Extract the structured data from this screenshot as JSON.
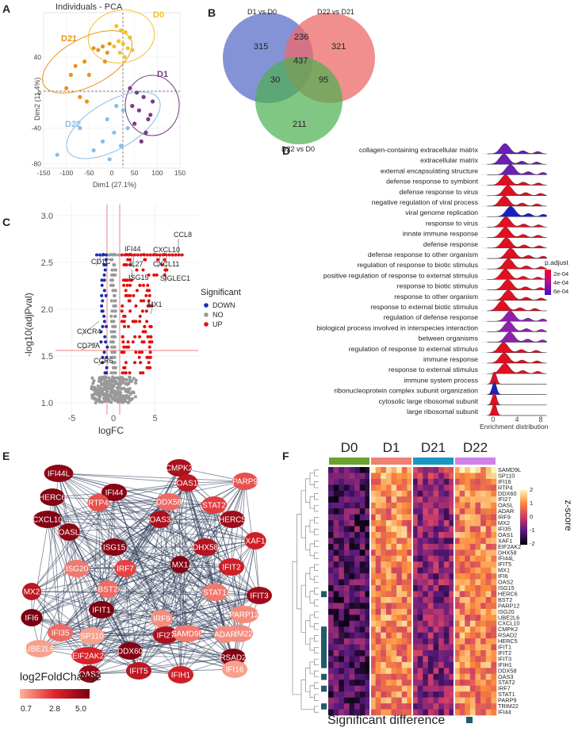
{
  "panels": {
    "A": "A",
    "B": "B",
    "C": "C",
    "D": "D",
    "E": "E",
    "F": "F"
  },
  "pca": {
    "title": "Individuals - PCA",
    "xlabel": "Dim1 (27.1%)",
    "ylabel": "Dim2 (11.4%)",
    "xticks": [
      "-150",
      "-100",
      "-50",
      "0",
      "50",
      "100",
      "150"
    ],
    "yticks": [
      "40",
      "0",
      "-40",
      "-80"
    ],
    "groups": [
      {
        "name": "D0",
        "color": "#f2c12e",
        "points": [
          [
            10,
            75
          ],
          [
            20,
            70
          ],
          [
            30,
            68
          ],
          [
            15,
            58
          ],
          [
            25,
            55
          ],
          [
            40,
            62
          ],
          [
            5,
            52
          ],
          [
            35,
            50
          ],
          [
            18,
            45
          ],
          [
            28,
            40
          ],
          [
            45,
            48
          ]
        ]
      },
      {
        "name": "D21",
        "color": "#e8941c",
        "points": [
          [
            -90,
            20
          ],
          [
            -80,
            30
          ],
          [
            -60,
            35
          ],
          [
            -40,
            50
          ],
          [
            -30,
            48
          ],
          [
            -20,
            52
          ],
          [
            -10,
            45
          ],
          [
            -5,
            55
          ],
          [
            -50,
            20
          ],
          [
            -70,
            -5
          ],
          [
            -100,
            5
          ],
          [
            -55,
            -10
          ],
          [
            -15,
            35
          ]
        ]
      },
      {
        "name": "D1",
        "color": "#7a3b86",
        "points": [
          [
            40,
            5
          ],
          [
            55,
            0
          ],
          [
            70,
            -5
          ],
          [
            60,
            -20
          ],
          [
            80,
            -30
          ],
          [
            50,
            -35
          ],
          [
            75,
            -45
          ],
          [
            90,
            -10
          ],
          [
            65,
            -55
          ],
          [
            45,
            -15
          ],
          [
            85,
            -25
          ]
        ]
      },
      {
        "name": "D22",
        "color": "#8bbde6",
        "points": [
          [
            -120,
            -70
          ],
          [
            -70,
            -40
          ],
          [
            -40,
            -65
          ],
          [
            -20,
            -55
          ],
          [
            -10,
            -30
          ],
          [
            5,
            -45
          ],
          [
            20,
            -60
          ],
          [
            35,
            -40
          ],
          [
            10,
            -15
          ],
          [
            -5,
            -75
          ],
          [
            25,
            -20
          ]
        ]
      }
    ],
    "xlim": [
      -150,
      150
    ],
    "ylim": [
      -85,
      90
    ]
  },
  "venn": {
    "labels": {
      "d1vsd0": "D1 vs D0",
      "d22vsd21": "D22 vs D21",
      "d22vsd0": "D22 vs D0"
    },
    "counts": {
      "only1": "315",
      "only2": "321",
      "only3": "211",
      "c12": "236",
      "c13": "30",
      "c23": "95",
      "c123": "437"
    }
  },
  "volcano": {
    "xlabel": "logFC",
    "ylabel": "-log10(adjPval)",
    "xticks": [
      "-5",
      "0",
      "5"
    ],
    "yticks": [
      "1.0",
      "1.5",
      "2.0",
      "2.5",
      "3.0"
    ],
    "legend_title": "Significant",
    "legend": [
      {
        "label": "DOWN",
        "color": "#1a2db0"
      },
      {
        "label": "NO",
        "color": "#999999"
      },
      {
        "label": "UP",
        "color": "#e01010"
      }
    ],
    "gene_labels": [
      "CCL8",
      "IFI44",
      "CXCL10",
      "CD1C",
      "IL27",
      "CXCL11",
      "ISG15",
      "SIGLEC1",
      "MX1",
      "CXCR4",
      "CD79A",
      "CCR6"
    ]
  },
  "ridge": {
    "terms": [
      "collagen-containing extracellular matrix",
      "extracellular matrix",
      "external encapsulating structure",
      "defense response to symbiont",
      "defense response to virus",
      "negative regulation of viral process",
      "viral genome replication",
      "response to virus",
      "innate immune response",
      "defense response",
      "defense response to other organism",
      "regulation of response to biotic stimulus",
      "positive regulation of response to external stimulus",
      "response to biotic stimulus",
      "response to other organism",
      "response to external biotic stimulus",
      "regulation of defense response",
      "biological process involved in interspecies interaction",
      "between organisms",
      "regulation of response to external stimulus",
      "immune response",
      "response to external stimulus",
      "immune system process",
      "ribonucleoprotein complex subunit organization",
      "cytosolic large ribosomal subunit",
      "large ribosomal subunit"
    ],
    "colors": [
      "#6a1fb8",
      "#6a1fb8",
      "#6a1fb8",
      "#e01020",
      "#e01020",
      "#e01020",
      "#1a20c0",
      "#e01020",
      "#e01020",
      "#e01020",
      "#e01020",
      "#e01020",
      "#e01020",
      "#e01020",
      "#e01020",
      "#e01020",
      "#9020b0",
      "#9020b0",
      "#9020b0",
      "#e01020",
      "#e01020",
      "#e01020",
      "#e01020",
      "#1a20c0",
      "#e01020",
      "#e01020"
    ],
    "xticks": [
      "0",
      "4",
      "8"
    ],
    "xlabel": "Enrichment distribution",
    "legend_title": "p.adjust",
    "legend_ticks": [
      "2e-04",
      "4e-04",
      "6e-04"
    ]
  },
  "network": {
    "nodes": [
      {
        "name": "IFI44L",
        "lfc": 4.6
      },
      {
        "name": "CMPK2",
        "lfc": 4.0
      },
      {
        "name": "HERC6",
        "lfc": 4.8
      },
      {
        "name": "IFI44",
        "lfc": 4.7
      },
      {
        "name": "OAS1",
        "lfc": 3.6
      },
      {
        "name": "PARP9",
        "lfc": 2.2
      },
      {
        "name": "CXCL10",
        "lfc": 4.8
      },
      {
        "name": "DDX58",
        "lfc": 1.8
      },
      {
        "name": "STAT2",
        "lfc": 2.5
      },
      {
        "name": "RTP4",
        "lfc": 2.2
      },
      {
        "name": "HERC5",
        "lfc": 4.2
      },
      {
        "name": "OASL",
        "lfc": 4.6
      },
      {
        "name": "OAS3",
        "lfc": 4.0
      },
      {
        "name": "XAF1",
        "lfc": 3.2
      },
      {
        "name": "ISG15",
        "lfc": 4.7
      },
      {
        "name": "DHX58",
        "lfc": 3.8
      },
      {
        "name": "IFIT2",
        "lfc": 3.2
      },
      {
        "name": "MX2",
        "lfc": 3.6
      },
      {
        "name": "ISG20",
        "lfc": 1.6
      },
      {
        "name": "IRF7",
        "lfc": 2.4
      },
      {
        "name": "MX1",
        "lfc": 4.8
      },
      {
        "name": "IFIT3",
        "lfc": 4.2
      },
      {
        "name": "IFI6",
        "lfc": 5.0
      },
      {
        "name": "BST2",
        "lfc": 1.8
      },
      {
        "name": "STAT1",
        "lfc": 1.6
      },
      {
        "name": "PARP12",
        "lfc": 1.3
      },
      {
        "name": "IFIT1",
        "lfc": 4.9
      },
      {
        "name": "TRIM22",
        "lfc": 1.3
      },
      {
        "name": "IRF9",
        "lfc": 1.3
      },
      {
        "name": "IFI35",
        "lfc": 1.8
      },
      {
        "name": "SP110",
        "lfc": 1.0
      },
      {
        "name": "IFI27",
        "lfc": 4.0
      },
      {
        "name": "RSAD2",
        "lfc": 4.8
      },
      {
        "name": "UBE2L6",
        "lfc": 1.0
      },
      {
        "name": "SAMD9L",
        "lfc": 1.6
      },
      {
        "name": "ADAR",
        "lfc": 1.3
      },
      {
        "name": "EIF2AK2",
        "lfc": 3.0
      },
      {
        "name": "DDX60",
        "lfc": 4.8
      },
      {
        "name": "OAS2",
        "lfc": 4.4
      },
      {
        "name": "IFI16",
        "lfc": 1.0
      },
      {
        "name": "IFIT5",
        "lfc": 3.6
      },
      {
        "name": "IFIH1",
        "lfc": 3.2
      }
    ],
    "legend_title": "log2FoldChange",
    "legend_ticks": [
      "0.7",
      "2.8",
      "5.0"
    ]
  },
  "heatmap": {
    "groups": [
      {
        "label": "D0",
        "color": "#6aa22a"
      },
      {
        "label": "D1",
        "color": "#f08070"
      },
      {
        "label": "D21",
        "color": "#1a97c0"
      },
      {
        "label": "D22",
        "color": "#d080e8"
      }
    ],
    "genes": [
      "SAMD9L",
      "SP110",
      "IFI16",
      "RTP4",
      "DDX60",
      "IFI27",
      "OASL",
      "ADAR",
      "IRF9",
      "MX2",
      "IFI35",
      "OAS1",
      "XAF1",
      "EIF2AK2",
      "DHX58",
      "IFI44L",
      "IFIT5",
      "MX1",
      "IFI6",
      "OAS2",
      "ISG15",
      "HERC6",
      "BST2",
      "PARP12",
      "ISG20",
      "UBE2L6",
      "CXCL10",
      "CMPK2",
      "RSAD2",
      "HERC5",
      "IFIT1",
      "IFIT2",
      "IFIT3",
      "IFIH1",
      "DDX58",
      "OAS3",
      "STAT2",
      "IRF7",
      "STAT1",
      "PARP9",
      "TRIM22",
      "IFI44"
    ],
    "significant": [
      false,
      false,
      false,
      false,
      false,
      false,
      false,
      false,
      false,
      false,
      false,
      false,
      false,
      false,
      false,
      false,
      false,
      false,
      false,
      false,
      false,
      true,
      false,
      false,
      false,
      false,
      false,
      true,
      true,
      true,
      true,
      true,
      true,
      true,
      false,
      true,
      false,
      true,
      false,
      false,
      true,
      false
    ],
    "legend_title": "z-score",
    "legend_ticks": [
      "2",
      "1",
      "0",
      "-1",
      "-2"
    ],
    "footer": "Significant difference",
    "sig_color": "#1e5b6b"
  }
}
